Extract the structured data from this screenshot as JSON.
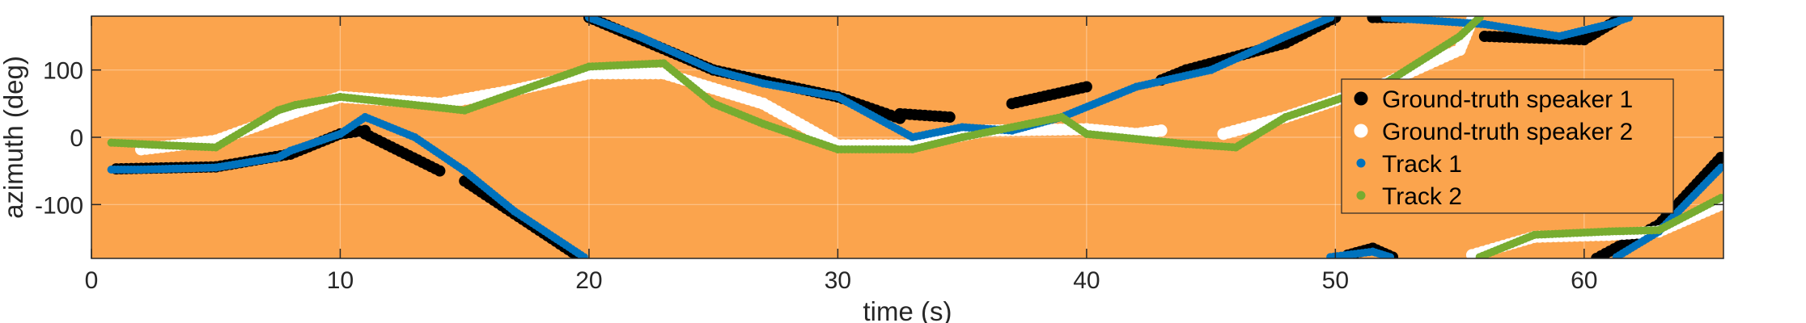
{
  "colors": {
    "background": "#FBA44D",
    "gt1": "#000000",
    "gt2": "#FFFFFF",
    "track1": "#0072BD",
    "track2": "#77AC30",
    "axis": "#262626"
  },
  "chart_data": {
    "type": "scatter",
    "xlabel": "time (s)",
    "ylabel": "azimuth (deg)",
    "xlim": [
      0,
      65.6
    ],
    "ylim": [
      -180,
      180
    ],
    "xticks": [
      0,
      10,
      20,
      30,
      40,
      50,
      60
    ],
    "yticks": [
      -100,
      0,
      100
    ],
    "grid": true,
    "legend_position": "right",
    "series": [
      {
        "name": "Ground-truth speaker 1",
        "color": "#000000",
        "segments": [
          [
            [
              1,
              -47
            ],
            [
              5,
              -44
            ],
            [
              8,
              -25
            ],
            [
              10,
              5
            ],
            [
              11,
              10
            ]
          ],
          [
            [
              11,
              5
            ],
            [
              14,
              -50
            ]
          ],
          [
            [
              15,
              -65
            ],
            [
              19.5,
              -175
            ]
          ],
          [
            [
              20,
              178
            ],
            [
              25,
              100
            ],
            [
              30,
              60
            ],
            [
              32.5,
              28
            ]
          ],
          [
            [
              32.5,
              35
            ],
            [
              34.5,
              30
            ]
          ],
          [
            [
              37,
              50
            ],
            [
              40,
              75
            ]
          ],
          [
            [
              43,
              85
            ],
            [
              44,
              100
            ],
            [
              48,
              140
            ],
            [
              50,
              178
            ]
          ],
          [
            [
              50.5,
              -175
            ],
            [
              51.5,
              -165
            ],
            [
              52.3,
              -178
            ]
          ],
          [
            [
              51.5,
              178
            ],
            [
              52.8,
              178
            ]
          ],
          [
            [
              56,
              150
            ],
            [
              60,
              145
            ],
            [
              61.5,
              178
            ]
          ],
          [
            [
              60.5,
              -180
            ],
            [
              63,
              -130
            ],
            [
              65.5,
              -30
            ]
          ]
        ]
      },
      {
        "name": "Ground-truth speaker 2",
        "color": "#FFFFFF",
        "segments": [
          [
            [
              2,
              -18
            ],
            [
              5,
              -5
            ],
            [
              8,
              35
            ],
            [
              10,
              60
            ],
            [
              14,
              50
            ],
            [
              17,
              70
            ],
            [
              20,
              95
            ],
            [
              23,
              95
            ],
            [
              27,
              50
            ],
            [
              30,
              -12
            ],
            [
              33,
              -12
            ],
            [
              36,
              10
            ],
            [
              40,
              12
            ],
            [
              42,
              5
            ],
            [
              43,
              10
            ]
          ],
          [
            [
              45.5,
              5
            ],
            [
              48,
              30
            ],
            [
              52,
              80
            ],
            [
              55,
              130
            ],
            [
              55.5,
              175
            ]
          ],
          [
            [
              55.5,
              -175
            ],
            [
              58,
              -148
            ],
            [
              61,
              -145
            ],
            [
              63,
              -140
            ],
            [
              65.5,
              -100
            ]
          ]
        ]
      },
      {
        "name": "Track 1",
        "color": "#0072BD",
        "segments": [
          [
            [
              0.8,
              -48
            ],
            [
              2,
              -48
            ],
            [
              5,
              -45
            ],
            [
              7.5,
              -30
            ],
            [
              8,
              -20
            ],
            [
              10,
              5
            ],
            [
              11,
              30
            ],
            [
              13,
              0
            ],
            [
              15,
              -50
            ],
            [
              17,
              -110
            ],
            [
              19.8,
              -178
            ]
          ],
          [
            [
              20,
              178
            ],
            [
              22,
              150
            ],
            [
              25,
              100
            ],
            [
              27,
              80
            ],
            [
              30,
              60
            ],
            [
              33,
              0
            ],
            [
              35,
              15
            ],
            [
              37,
              10
            ],
            [
              39,
              30
            ],
            [
              42,
              75
            ],
            [
              45,
              100
            ],
            [
              48,
              150
            ],
            [
              49.8,
              178
            ]
          ],
          [
            [
              49.8,
              -178
            ],
            [
              51.5,
              -170
            ],
            [
              52.2,
              -178
            ]
          ],
          [
            [
              52,
              178
            ],
            [
              56,
              168
            ],
            [
              59,
              150
            ],
            [
              61,
              168
            ],
            [
              61.8,
              178
            ]
          ],
          [
            [
              61.3,
              -178
            ],
            [
              63,
              -140
            ],
            [
              65.5,
              -45
            ]
          ]
        ]
      },
      {
        "name": "Track 2",
        "color": "#77AC30",
        "segments": [
          [
            [
              0.8,
              -8
            ],
            [
              3,
              -12
            ],
            [
              5,
              -15
            ],
            [
              7.5,
              40
            ],
            [
              8.2,
              48
            ],
            [
              10,
              60
            ],
            [
              15,
              40
            ],
            [
              20,
              105
            ],
            [
              23,
              110
            ],
            [
              25,
              50
            ],
            [
              27,
              20
            ],
            [
              30,
              -18
            ],
            [
              33,
              -18
            ],
            [
              35,
              0
            ],
            [
              39,
              30
            ],
            [
              40,
              5
            ],
            [
              44,
              -10
            ],
            [
              46,
              -15
            ],
            [
              48,
              30
            ],
            [
              52,
              80
            ],
            [
              55,
              150
            ],
            [
              55.8,
              178
            ]
          ],
          [
            [
              55.8,
              -178
            ],
            [
              58,
              -145
            ],
            [
              61,
              -140
            ],
            [
              63,
              -138
            ],
            [
              65.5,
              -90
            ]
          ]
        ]
      }
    ]
  }
}
